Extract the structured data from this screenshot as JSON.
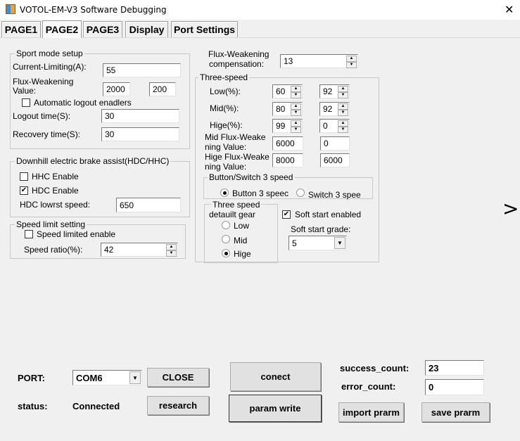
{
  "window": {
    "title": "VOTOL-EM-V3 Software Debugging",
    "close": "✕"
  },
  "tabs": [
    "PAGE1",
    "PAGE2",
    "PAGE3",
    "Display",
    "Port Settings"
  ],
  "selected_tab": "PAGE2",
  "sport": {
    "title": "Sport mode setup",
    "current_label": "Current-Limiting(A):",
    "current": "55",
    "flux_label1": "Flux-Weakening",
    "flux_label2": "Value:",
    "flux1": "2000",
    "flux2": "200",
    "auto_logout": "Automatic logout enadlers",
    "auto_logout_checked": false,
    "logout_label": "Logout time(S):",
    "logout": "30",
    "recovery_label": "Recovery time(S):",
    "recovery": "30"
  },
  "downhill": {
    "title": "Downhill electric brake assist(HDC/HHC)",
    "hhc": "HHC Enable",
    "hhc_checked": false,
    "hdc": "HDC Enable",
    "hdc_checked": true,
    "speed_label": "HDC lowrst speed:",
    "speed": "650"
  },
  "speed_limit": {
    "title": "Speed limit setting",
    "enable": "Speed limited enable",
    "enable_checked": false,
    "ratio_label": "Speed ratio(%):",
    "ratio": "42"
  },
  "flux_comp": {
    "label1": "Flux-Weakening",
    "label2": "compensation:",
    "value": "13"
  },
  "three_speed": {
    "title": "Three-speed",
    "low_label": "Low(%):",
    "low": [
      "60",
      "92"
    ],
    "mid_label": "Mid(%):",
    "mid": [
      "80",
      "92"
    ],
    "hige_label": "Hige(%):",
    "hige": [
      "99",
      "0"
    ],
    "midflux_label1": "Mid Flux-Weake",
    "midflux_label2": "ning Value:",
    "midflux": [
      "6000",
      "0"
    ],
    "higeflux_label1": "Hige Flux-Weake",
    "higeflux_label2": "ning Value:",
    "higeflux": [
      "8000",
      "6000"
    ],
    "bs_title": "Button/Switch 3 speed",
    "button3": "Button 3 speec",
    "switch3": "Switch 3 spee",
    "bs_selected": "button",
    "gear_title1": "Three speed",
    "gear_title2": "detauilt gear",
    "gear_options": [
      "Low",
      "Mid",
      "Hige"
    ],
    "gear_selected": "Hige",
    "soft_start": "Soft start enabled",
    "soft_start_checked": true,
    "grade_label": "Soft start grade:",
    "grade": "5"
  },
  "next_arrow": ">",
  "bottom": {
    "port_label": "PORT:",
    "port": "COM6",
    "close": "CLOSE",
    "status_label": "status:",
    "status": "Connected",
    "research": "research",
    "conect": "conect",
    "param_write": "param write",
    "success_label": "success_count:",
    "success": "23",
    "error_label": "error_count:",
    "error": "0",
    "import": "import prarm",
    "save": "save prarm"
  }
}
